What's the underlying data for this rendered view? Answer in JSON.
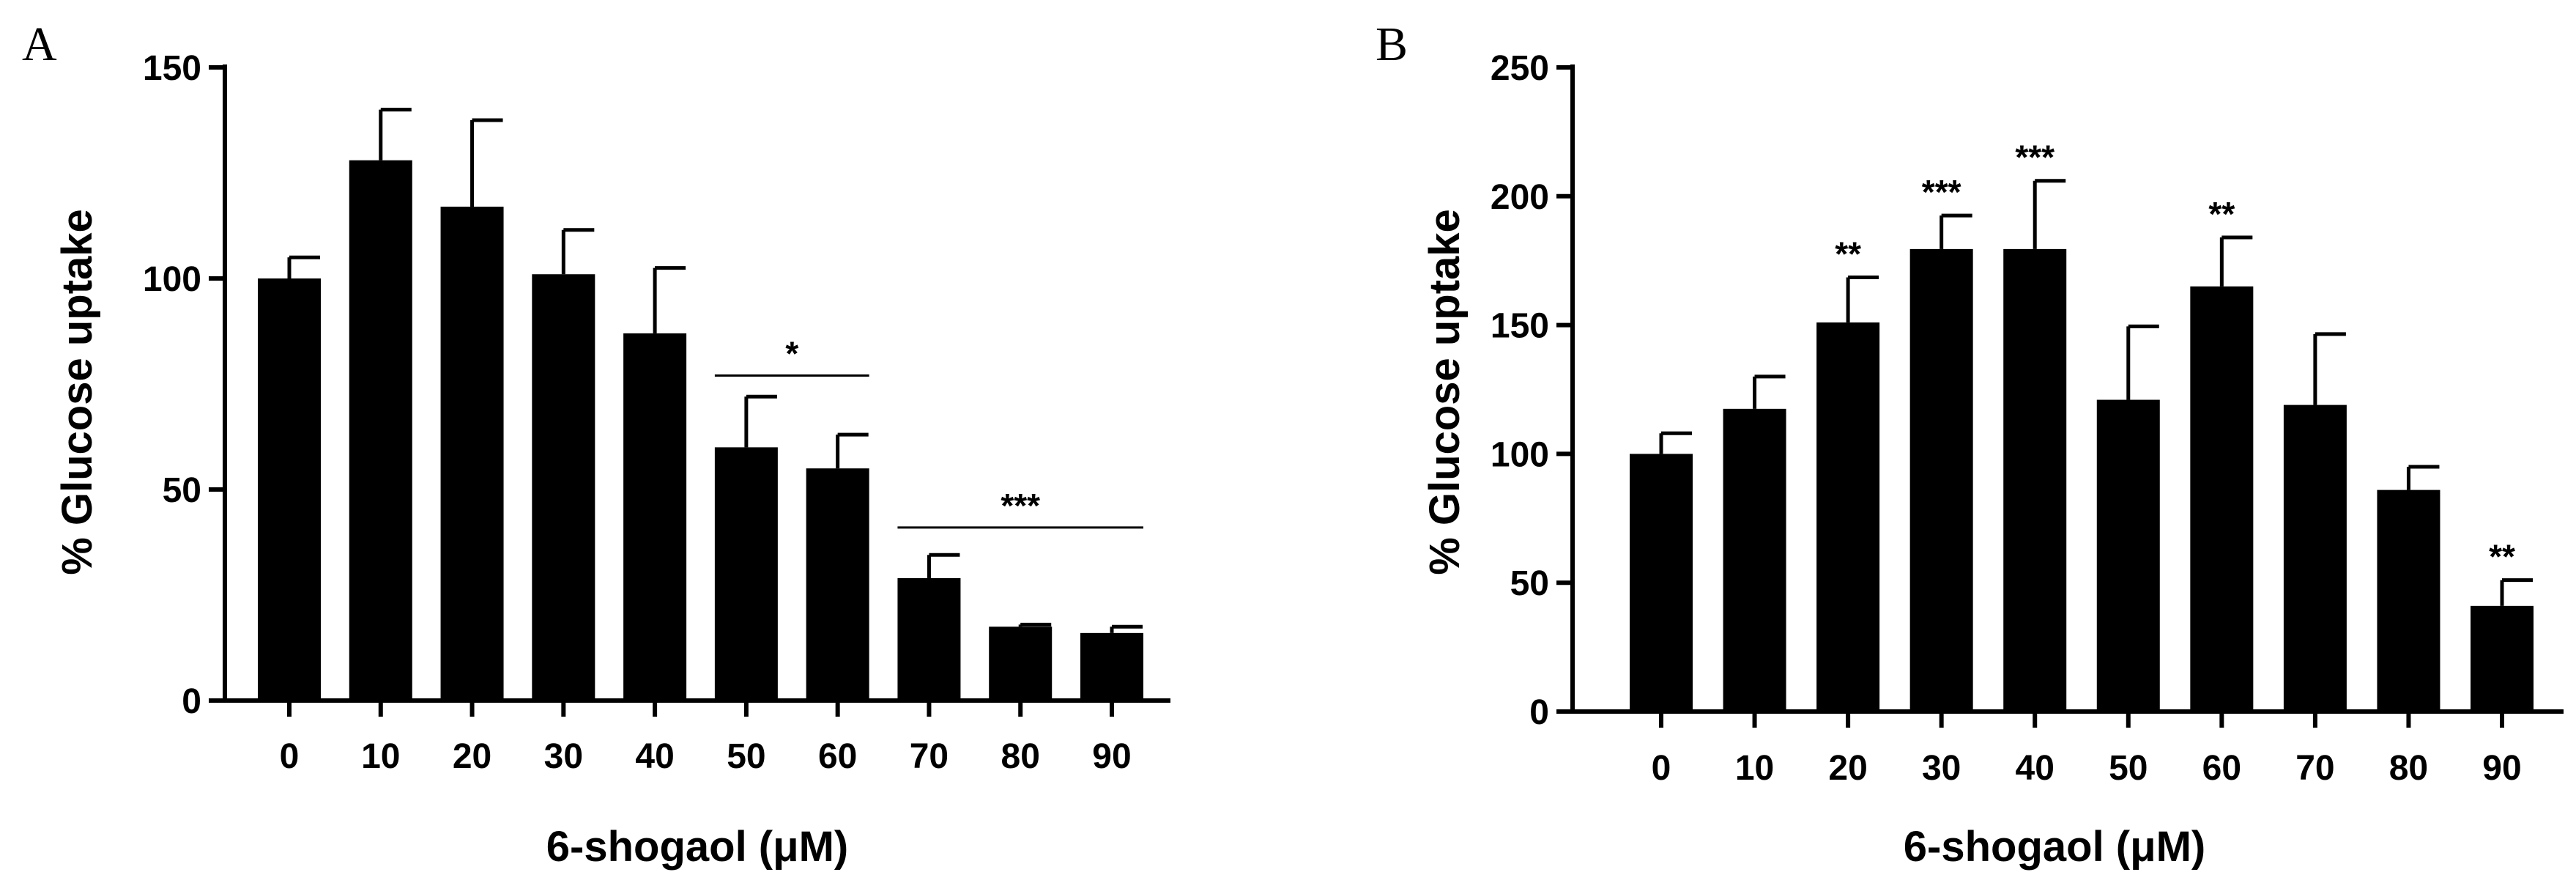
{
  "chart_data": [
    {
      "panel": "A",
      "type": "bar",
      "xlabel": "6-shogaol (μM)",
      "ylabel": "% Glucose uptake",
      "ylim": [
        0,
        150
      ],
      "yticks": [
        "0",
        "50",
        "100",
        "150"
      ],
      "categories": [
        "0",
        "10",
        "20",
        "30",
        "40",
        "50",
        "60",
        "70",
        "80",
        "90"
      ],
      "values": [
        100,
        128,
        117,
        101,
        87,
        60,
        55,
        29,
        17.5,
        16
      ],
      "errors": [
        5,
        12,
        20.5,
        10.5,
        15.5,
        12,
        8,
        5.5,
        0.5,
        1.5
      ],
      "bar_color": "#000000",
      "significance": [
        {
          "label": "*",
          "from": "50",
          "to": "60",
          "y": 77
        },
        {
          "label": "***",
          "from": "70",
          "to": "90",
          "y": 41
        }
      ]
    },
    {
      "panel": "B",
      "type": "bar",
      "xlabel": "6-shogaol (μM)",
      "ylabel": "% Glucose uptake",
      "ylim": [
        0,
        250
      ],
      "yticks": [
        "0",
        "50",
        "100",
        "150",
        "200",
        "250"
      ],
      "categories": [
        "0",
        "10",
        "20",
        "30",
        "40",
        "50",
        "60",
        "70",
        "80",
        "90"
      ],
      "values": [
        100,
        117.5,
        151,
        179.5,
        179.5,
        121,
        165,
        119,
        86,
        41
      ],
      "errors": [
        8,
        12.5,
        17.5,
        13,
        26.5,
        28.5,
        19,
        27.5,
        9,
        10
      ],
      "bar_color": "#000000",
      "significance": [
        {
          "label": "",
          "category": "0"
        },
        {
          "label": "",
          "category": "10"
        },
        {
          "label": "**",
          "category": "20"
        },
        {
          "label": "***",
          "category": "30"
        },
        {
          "label": "***",
          "category": "40"
        },
        {
          "label": "",
          "category": "50"
        },
        {
          "label": "**",
          "category": "60"
        },
        {
          "label": "",
          "category": "70"
        },
        {
          "label": "",
          "category": "80"
        },
        {
          "label": "**",
          "category": "90"
        }
      ]
    }
  ]
}
